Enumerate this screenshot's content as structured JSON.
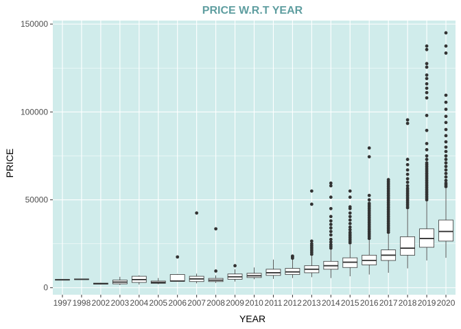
{
  "chart_data": {
    "type": "boxplot",
    "title": "PRICE W.R.T YEAR",
    "xlabel": "YEAR",
    "ylabel": "PRICE",
    "ylim": [
      -4000,
      152000
    ],
    "yticks": [
      0,
      50000,
      100000,
      150000
    ],
    "ytick_labels": [
      "0",
      "50000",
      "100000",
      "150000"
    ],
    "grid": true,
    "colors": {
      "panel_background": "#d0eceb",
      "grid": "#ffffff",
      "box_fill": "#ffffff",
      "box_line": "#333333",
      "outlier": "#333333",
      "title": "#5f9ea0"
    },
    "categories": [
      "1997",
      "1998",
      "2002",
      "2003",
      "2004",
      "2005",
      "2006",
      "2007",
      "2008",
      "2009",
      "2010",
      "2011",
      "2012",
      "2013",
      "2014",
      "2015",
      "2016",
      "2017",
      "2018",
      "2019",
      "2020"
    ],
    "boxes": [
      {
        "min": 4200,
        "q1": 4300,
        "median": 4500,
        "q3": 4700,
        "max": 4800,
        "outliers": []
      },
      {
        "min": 4500,
        "q1": 4600,
        "median": 4800,
        "q3": 5000,
        "max": 5100,
        "outliers": []
      },
      {
        "min": 1800,
        "q1": 2000,
        "median": 2300,
        "q3": 2600,
        "max": 2800,
        "outliers": []
      },
      {
        "min": 1500,
        "q1": 2200,
        "median": 3200,
        "q3": 4300,
        "max": 6200,
        "outliers": []
      },
      {
        "min": 1800,
        "q1": 3000,
        "median": 4600,
        "q3": 6500,
        "max": 7000,
        "outliers": []
      },
      {
        "min": 2000,
        "q1": 2500,
        "median": 3000,
        "q3": 3800,
        "max": 5500,
        "outliers": []
      },
      {
        "min": 3500,
        "q1": 3600,
        "median": 3800,
        "q3": 7500,
        "max": 7800,
        "outliers": [
          17500
        ]
      },
      {
        "min": 2500,
        "q1": 3500,
        "median": 5000,
        "q3": 6500,
        "max": 8000,
        "outliers": [
          42500
        ]
      },
      {
        "min": 2800,
        "q1": 3500,
        "median": 4300,
        "q3": 5300,
        "max": 7000,
        "outliers": [
          9500,
          33500
        ]
      },
      {
        "min": 3500,
        "q1": 4800,
        "median": 6200,
        "q3": 7800,
        "max": 10500,
        "outliers": [
          12500
        ]
      },
      {
        "min": 4800,
        "q1": 5800,
        "median": 6800,
        "q3": 8200,
        "max": 11500,
        "outliers": []
      },
      {
        "min": 5000,
        "q1": 7000,
        "median": 8500,
        "q3": 10500,
        "max": 16000,
        "outliers": []
      },
      {
        "min": 5500,
        "q1": 7500,
        "median": 9000,
        "q3": 11000,
        "max": 16000,
        "outliers": [
          16800,
          17500,
          18000
        ]
      },
      {
        "min": 6000,
        "q1": 8500,
        "median": 10500,
        "q3": 12500,
        "max": 18000,
        "outliers": [
          19000,
          20000,
          21000,
          22000,
          23000,
          24000,
          25000,
          26500,
          47500,
          55000
        ]
      },
      {
        "min": 5500,
        "q1": 10500,
        "median": 12500,
        "q3": 15000,
        "max": 21500,
        "outliers": [
          22500,
          23500,
          24500,
          26000,
          27500,
          30000,
          32000,
          34000,
          36000,
          38000,
          40500,
          45000,
          51500,
          58000,
          59500
        ]
      },
      {
        "min": 6500,
        "q1": 11500,
        "median": 14500,
        "q3": 17000,
        "max": 24500,
        "outliers": [
          25500,
          26500,
          27500,
          28500,
          29500,
          30500,
          31500,
          33000,
          34500,
          36500,
          38500,
          40500,
          42500,
          45000,
          46000,
          51500,
          55000
        ]
      },
      {
        "min": 7500,
        "q1": 13000,
        "median": 15500,
        "q3": 18500,
        "max": 27000,
        "outliers": [
          28000,
          29000,
          30000,
          31000,
          32000,
          33000,
          34000,
          35000,
          36000,
          37000,
          38000,
          39000,
          40000,
          41000,
          42000,
          43000,
          44000,
          45000,
          46000,
          47000,
          48000,
          50000,
          52500,
          74500,
          79500
        ]
      },
      {
        "min": 8500,
        "q1": 15500,
        "median": 18500,
        "q3": 21500,
        "max": 30500,
        "outliers": [
          31500,
          32500,
          33500,
          34500,
          35500,
          36500,
          37500,
          38500,
          39500,
          40500,
          41500,
          42500,
          43500,
          44500,
          45500,
          46500,
          47500,
          48500,
          49500,
          50500,
          51500,
          52500,
          53500,
          54500,
          55500,
          56500,
          57500,
          58500,
          59500,
          60500,
          61500
        ]
      },
      {
        "min": 11000,
        "q1": 18500,
        "median": 22500,
        "q3": 29000,
        "max": 44500,
        "outliers": [
          45500,
          46500,
          47500,
          48500,
          49500,
          50500,
          51500,
          52500,
          53500,
          54500,
          55500,
          56500,
          58000,
          60000,
          62000,
          64500,
          67000,
          70000,
          73000,
          93500,
          95500
        ]
      },
      {
        "min": 15500,
        "q1": 23000,
        "median": 28000,
        "q3": 33500,
        "max": 49000,
        "outliers": [
          50000,
          51000,
          52000,
          53000,
          54000,
          55000,
          56000,
          57000,
          58000,
          59000,
          60000,
          61000,
          62000,
          63000,
          64000,
          65000,
          66000,
          67000,
          68000,
          69000,
          70000,
          71000,
          73000,
          75000,
          78500,
          82000,
          89500,
          98000,
          108000,
          111000,
          113500,
          116000,
          119000,
          121000,
          125500,
          127500,
          135500,
          137500
        ]
      },
      {
        "min": 17000,
        "q1": 26500,
        "median": 32000,
        "q3": 38500,
        "max": 56500,
        "outliers": [
          57500,
          58500,
          59500,
          61000,
          63000,
          65000,
          67000,
          69000,
          71000,
          73000,
          75000,
          77500,
          80000,
          83000,
          86500,
          90000,
          94000,
          97500,
          101500,
          105500,
          109500,
          133500,
          137500,
          145000
        ]
      }
    ]
  }
}
